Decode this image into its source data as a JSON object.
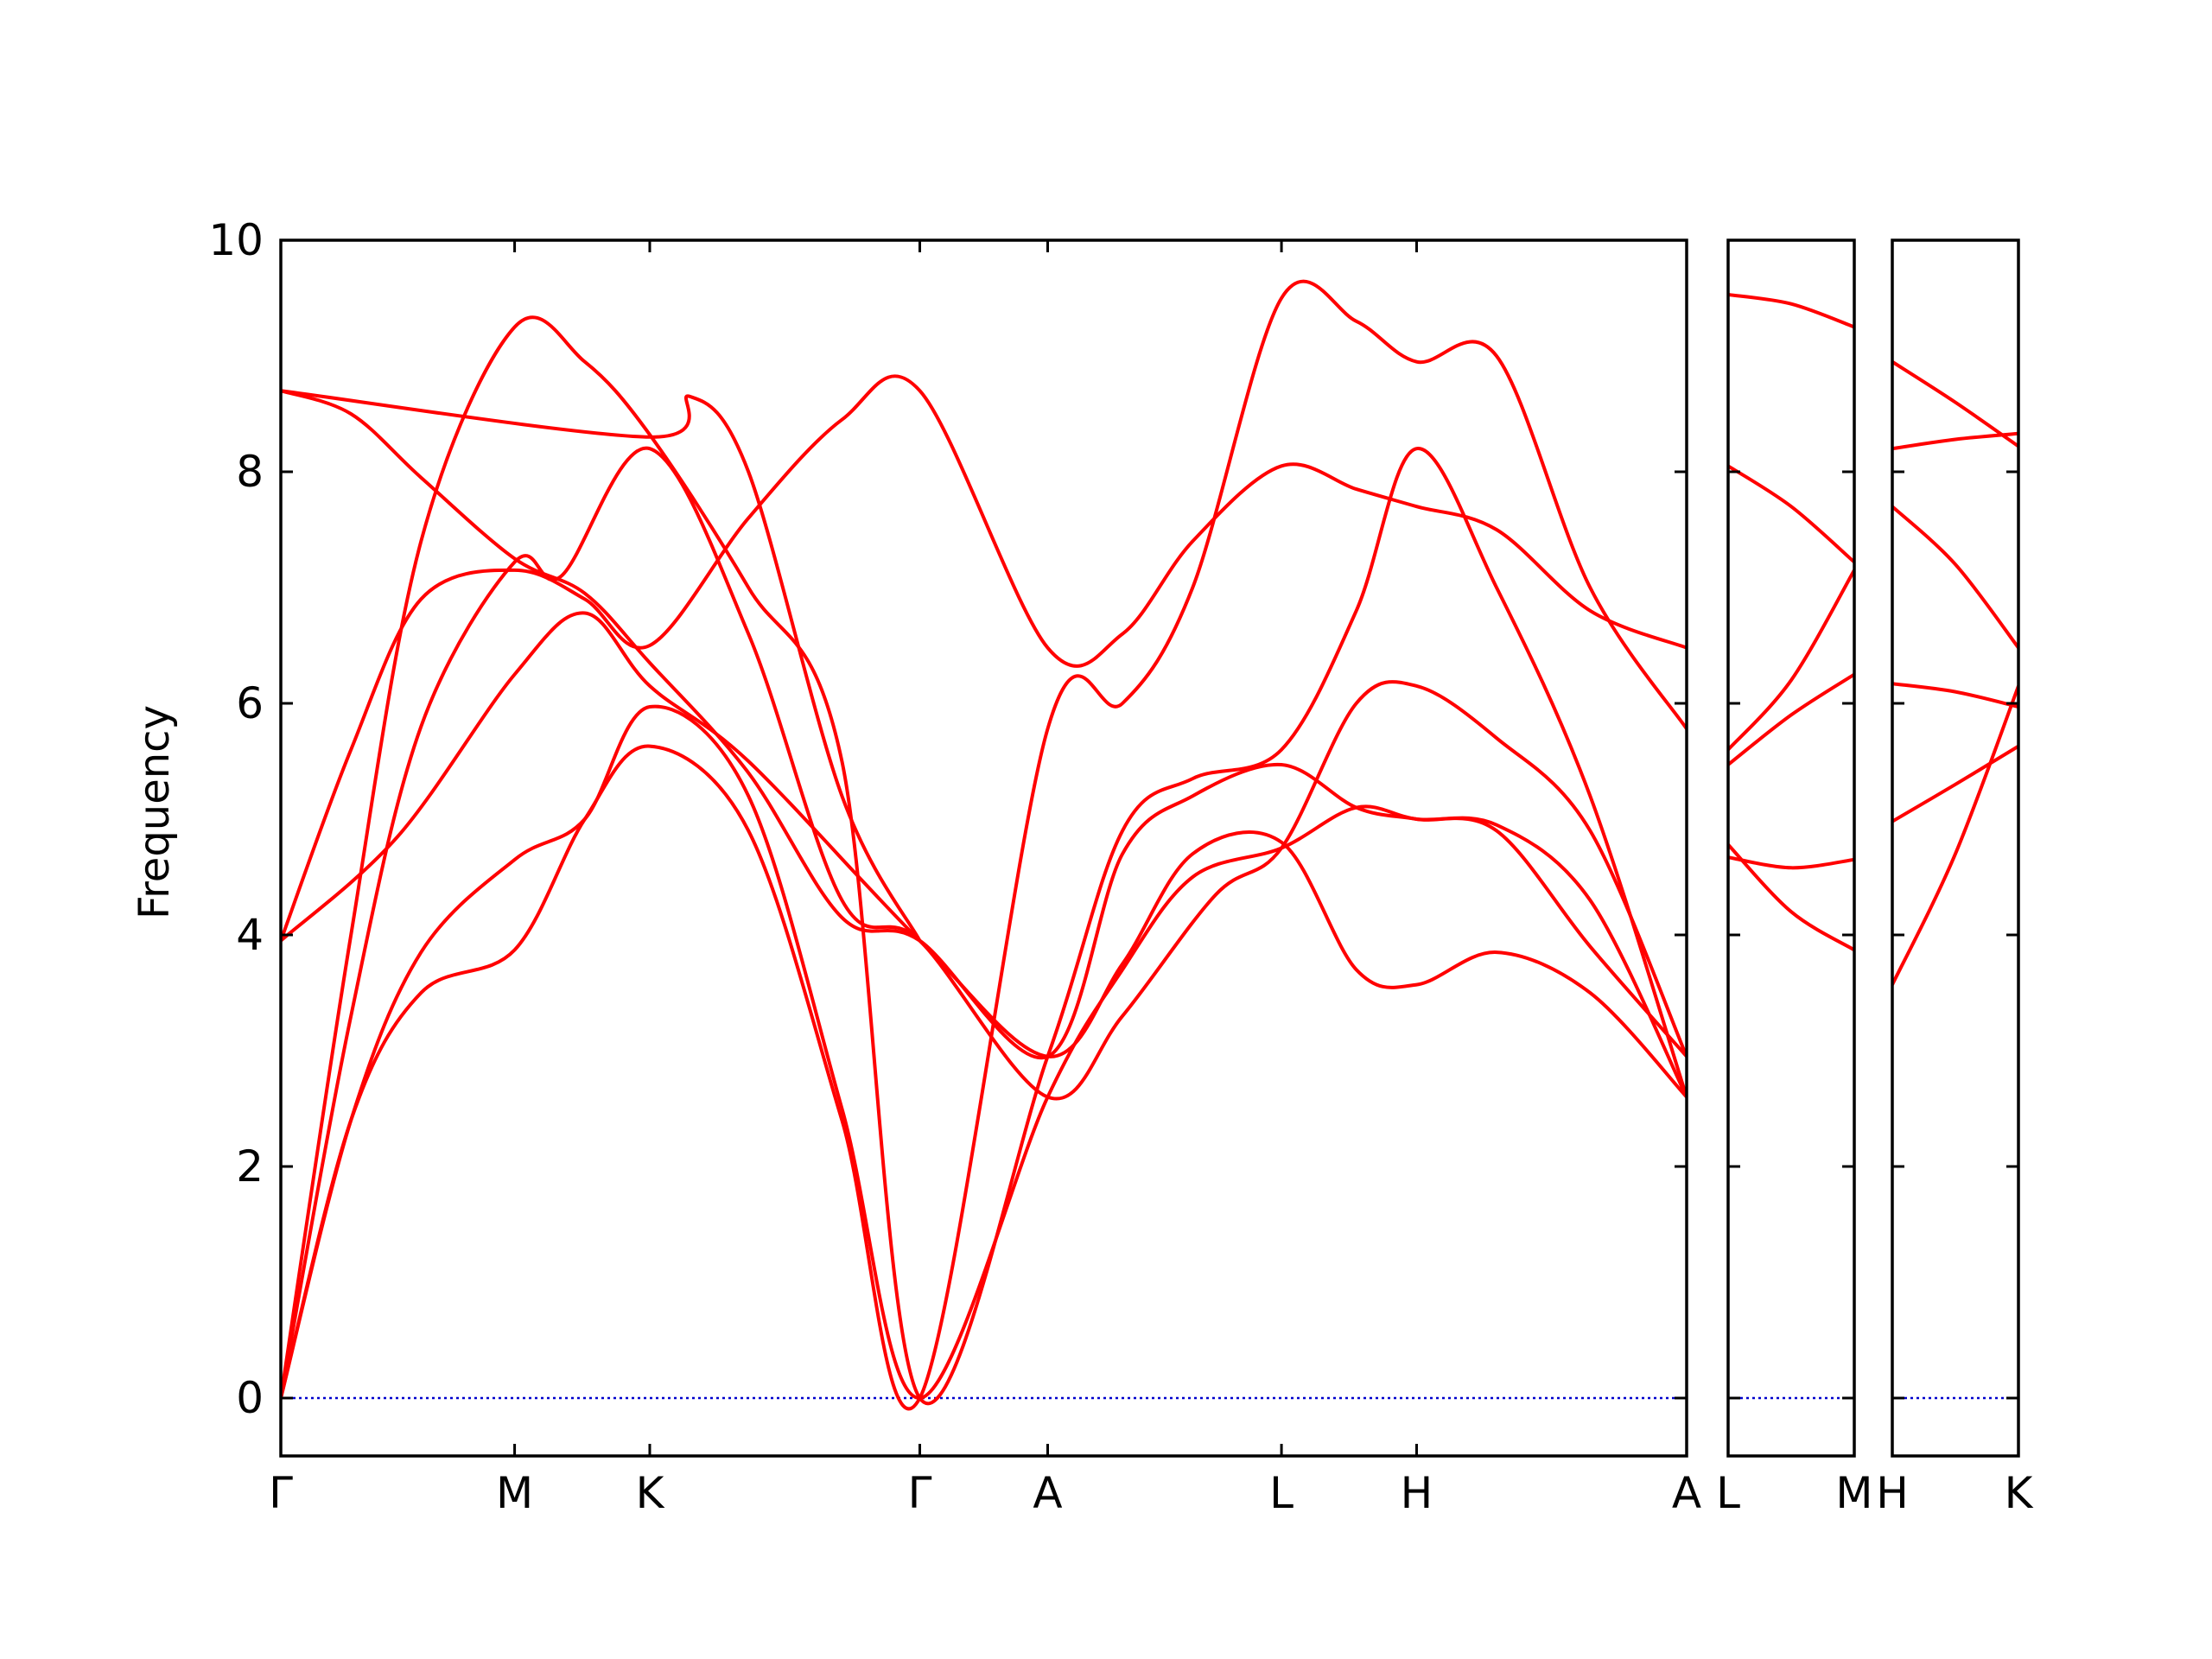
{
  "chart_data": {
    "type": "line",
    "title": "",
    "ylabel": "Frequency",
    "xlabel": "",
    "ylim": [
      -0.5,
      10
    ],
    "yticks": [
      0,
      2,
      4,
      6,
      8,
      10
    ],
    "grid": false,
    "colors": {
      "bands": "#ff0000",
      "zero_line": "#0000cc",
      "axes": "#000000"
    },
    "panels": [
      {
        "labels": [
          "Γ",
          "M",
          "K",
          "Γ",
          "A",
          "L",
          "H",
          "A"
        ],
        "positions": [
          0,
          1,
          1.578,
          2.733,
          3.28,
          4.28,
          4.858,
          6.013
        ],
        "bands": [
          {
            "x": [
              0,
              0.5,
              1,
              1.3,
              1.578,
              2.0,
              2.733,
              3.28,
              3.6,
              3.9,
              4.28,
              4.6,
              4.858,
              5.2,
              5.6,
              6.013
            ],
            "y": [
              3.95,
              4.85,
              6.25,
              6.78,
              6.15,
              5.5,
              3.95,
              2.95,
              3.75,
              4.7,
              4.8,
              3.7,
              3.57,
              3.85,
              3.5,
              2.6
            ]
          },
          {
            "x": [
              0,
              0.3,
              0.6,
              1,
              1.3,
              1.578,
              2.0,
              2.4,
              2.733,
              3.28,
              3.6,
              3.9,
              4.28,
              4.6,
              4.858,
              5.2,
              5.6,
              6.013
            ],
            "y": [
              3.95,
              5.6,
              6.9,
              7.15,
              6.9,
              6.5,
              7.6,
              8.45,
              8.7,
              6.48,
              6.6,
              7.4,
              8.05,
              7.85,
              7.7,
              7.5,
              6.8,
              6.48
            ]
          },
          {
            "x": [
              0,
              0.3,
              0.6,
              1,
              1.2,
              1.578,
              2.0,
              2.4,
              2.733,
              3.28,
              3.6,
              4.0,
              4.28,
              4.6,
              4.858,
              5.2,
              5.6,
              6.013
            ],
            "y": [
              0,
              3.3,
              5.8,
              7.22,
              7.1,
              8.2,
              6.6,
              4.3,
              3.95,
              2.6,
              3.3,
              4.35,
              4.75,
              6.0,
              6.15,
              5.7,
              4.9,
              2.95
            ]
          },
          {
            "x": [
              0,
              0.3,
              0.6,
              1,
              1.3,
              1.578,
              2.0,
              2.4,
              2.733,
              3.28,
              3.6,
              3.9,
              4.28,
              4.6,
              4.858,
              5.2,
              5.6,
              6.013
            ],
            "y": [
              0,
              2.4,
              3.85,
              4.65,
              5.0,
              5.97,
              5.2,
              2.5,
              0,
              2.6,
              3.7,
              4.5,
              4.75,
              5.1,
              5.0,
              4.95,
              4.3,
              2.6
            ]
          },
          {
            "x": [
              0,
              0.3,
              0.6,
              1,
              1.3,
              1.578,
              2.0,
              2.4,
              2.733,
              3.28,
              3.6,
              3.9,
              4.28,
              4.6,
              4.858,
              5.2,
              5.6,
              6.013
            ],
            "y": [
              0,
              2.4,
              3.5,
              3.87,
              5.0,
              5.63,
              4.9,
              2.4,
              0,
              5.78,
              6.0,
              7.0,
              9.5,
              9.3,
              8.95,
              9.0,
              7.0,
              5.78
            ]
          },
          {
            "x": [
              0,
              0.3,
              0.6,
              1,
              1.3,
              1.578,
              2.0,
              2.4,
              2.733,
              3.28,
              3.6,
              3.9,
              4.28,
              4.6,
              4.858,
              5.2,
              5.6,
              6.013
            ],
            "y": [
              0,
              4.0,
              7.4,
              9.25,
              8.95,
              8.32,
              7.0,
              5.5,
              0,
              2.95,
              4.9,
              5.35,
              5.6,
              6.8,
              8.2,
              7.0,
              5.2,
              2.6
            ]
          },
          {
            "x": [
              0,
              0.3,
              0.6,
              1,
              1.3,
              1.578,
              2.0,
              2.4,
              2.733,
              3.28,
              3.6,
              3.9,
              4.28,
              4.6,
              4.858,
              5.2,
              5.6,
              6.013
            ],
            "y": [
              8.7,
              8.5,
              7.95,
              7.25,
              6.95,
              6.35,
              5.4,
              4.15,
              3.95,
              2.95,
              4.7,
              5.2,
              5.47,
              5.1,
              5.0,
              4.9,
              3.9,
              2.95
            ]
          },
          {
            "x": [
              0,
              1.578,
              1.75,
              2.0,
              2.4,
              2.733
            ],
            "y": [
              8.7,
              8.3,
              8.65,
              8.0,
              5.2,
              3.95
            ]
          }
        ]
      },
      {
        "labels": [
          "L",
          "M"
        ],
        "positions": [
          0,
          1
        ],
        "bands": [
          {
            "x": [
              0,
              0.5,
              1
            ],
            "y": [
              9.53,
              9.45,
              9.25
            ]
          },
          {
            "x": [
              0,
              0.5,
              1
            ],
            "y": [
              8.05,
              7.7,
              7.22
            ]
          },
          {
            "x": [
              0,
              0.5,
              1
            ],
            "y": [
              5.6,
              6.2,
              7.15
            ]
          },
          {
            "x": [
              0,
              0.5,
              1
            ],
            "y": [
              5.47,
              5.9,
              6.25
            ]
          },
          {
            "x": [
              0,
              0.5,
              1
            ],
            "y": [
              4.78,
              4.2,
              3.87
            ]
          },
          {
            "x": [
              0,
              0.5,
              1
            ],
            "y": [
              4.67,
              4.58,
              4.65
            ]
          }
        ]
      },
      {
        "labels": [
          "H",
          "K"
        ],
        "positions": [
          0,
          1
        ],
        "bands": [
          {
            "x": [
              0,
              0.5,
              1
            ],
            "y": [
              8.95,
              8.6,
              8.22
            ]
          },
          {
            "x": [
              0,
              0.5,
              1
            ],
            "y": [
              8.2,
              8.28,
              8.33
            ]
          },
          {
            "x": [
              0,
              0.5,
              1
            ],
            "y": [
              7.7,
              7.2,
              6.48
            ]
          },
          {
            "x": [
              0,
              0.5,
              1
            ],
            "y": [
              6.17,
              6.1,
              5.97
            ]
          },
          {
            "x": [
              0,
              0.5,
              1
            ],
            "y": [
              4.98,
              5.3,
              5.63
            ]
          },
          {
            "x": [
              0,
              0.5,
              1
            ],
            "y": [
              3.57,
              4.7,
              6.15
            ]
          }
        ]
      }
    ]
  }
}
